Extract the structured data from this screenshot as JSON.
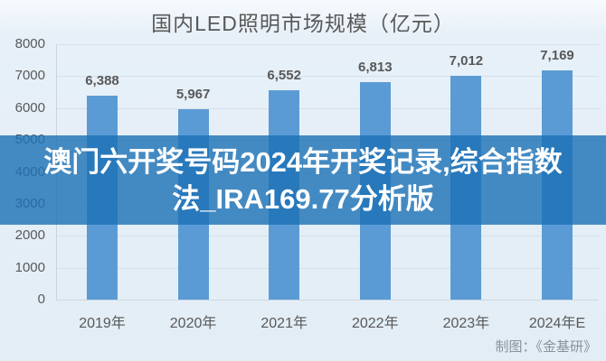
{
  "chart_data": {
    "type": "bar",
    "title": "国内LED照明市场规模（亿元）",
    "categories": [
      "2019年",
      "2020年",
      "2021年",
      "2022年",
      "2023年",
      "2024年E"
    ],
    "values": [
      6388,
      5967,
      6552,
      6813,
      7012,
      7169
    ],
    "value_labels": [
      "6,388",
      "5,967",
      "6,552",
      "6,813",
      "7,012",
      "7,169"
    ],
    "xlabel": "",
    "ylabel": "",
    "ylim": [
      0,
      8000
    ],
    "ytick_step": 1000,
    "ytick_labels": [
      "0",
      "1000",
      "2000",
      "3000",
      "4000",
      "5000",
      "6000",
      "7000",
      "8000"
    ],
    "grid": true,
    "legend": false,
    "bar_color": "#5b9bd5",
    "source_note": "制图：《金基研》"
  },
  "watermark": {
    "line1": "澳门六开奖号码2024年开奖记录,综合指数",
    "line2": "法_IRA169.77分析版",
    "bg_color": "rgba(27,113,180,0.8)",
    "text_color": "#ffffff"
  },
  "colors": {
    "background": "#e2edf6",
    "gridline": "#d6e0ea",
    "axis_text": "#595959",
    "source_text": "#8a939b"
  }
}
